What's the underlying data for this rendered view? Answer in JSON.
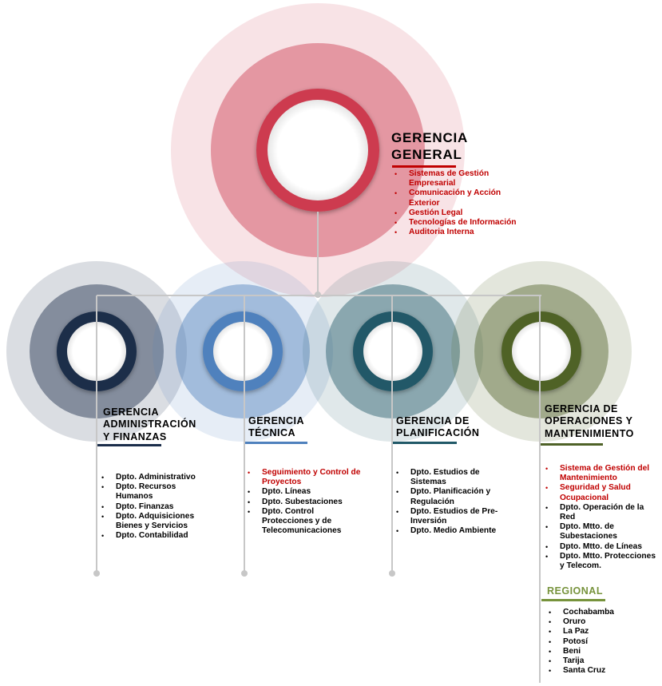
{
  "colors": {
    "general": "#cd3a4f",
    "admin": "#1b2d4a",
    "tecnica": "#4f81bd",
    "planificacion": "#215968",
    "operaciones": "#4f6228",
    "regional": "#77933c",
    "red_text": "#c00000",
    "connector": "#c7c7c7"
  },
  "general": {
    "title_line1": "GERENCIA",
    "title_line2": "GENERAL",
    "items": [
      {
        "text": "Sistemas de Gestión Empresarial",
        "color": "red"
      },
      {
        "text": "Comunicación y Acción Exterior",
        "color": "red"
      },
      {
        "text": "Gestión Legal",
        "color": "red"
      },
      {
        "text": "Tecnologías de Información",
        "color": "red"
      },
      {
        "text": "Auditoria Interna",
        "color": "red"
      }
    ]
  },
  "admin": {
    "title_line1": "GERENCIA",
    "title_line2": "ADMINISTRACIÓN",
    "title_line3": "Y FINANZAS",
    "items": [
      {
        "text": "Dpto. Administrativo",
        "color": "black"
      },
      {
        "text": "Dpto. Recursos Humanos",
        "color": "black"
      },
      {
        "text": "Dpto. Finanzas",
        "color": "black"
      },
      {
        "text": "Dpto. Adquisiciones Bienes y  Servicios",
        "color": "black"
      },
      {
        "text": "Dpto. Contabilidad",
        "color": "black"
      }
    ]
  },
  "tecnica": {
    "title_line1": "GERENCIA",
    "title_line2": "TÉCNICA",
    "items": [
      {
        "text": "Seguimiento y Control de Proyectos",
        "color": "red"
      },
      {
        "text": "Dpto. Líneas",
        "color": "black"
      },
      {
        "text": "Dpto. Subestaciones",
        "color": "black"
      },
      {
        "text": "Dpto. Control Protecciones y de Telecomunicaciones",
        "color": "black"
      }
    ]
  },
  "planificacion": {
    "title_line1": "GERENCIA DE",
    "title_line2": "PLANIFICACIÓN",
    "items": [
      {
        "text": "Dpto. Estudios de Sistemas",
        "color": "black"
      },
      {
        "text": "Dpto. Planificación y Regulación",
        "color": "black"
      },
      {
        "text": "Dpto. Estudios de Pre-Inversión",
        "color": "black"
      },
      {
        "text": "Dpto. Medio Ambiente",
        "color": "black"
      }
    ]
  },
  "operaciones": {
    "title_line1": "GERENCIA DE",
    "title_line2": "OPERACIONES Y",
    "title_line3": "MANTENIMIENTO",
    "items": [
      {
        "text": "Sistema de Gestión del Mantenimiento",
        "color": "red"
      },
      {
        "text": "Seguridad y Salud Ocupacional",
        "color": "red"
      },
      {
        "text": "Dpto. Operación de la Red",
        "color": "black"
      },
      {
        "text": "Dpto. Mtto. de Subestaciones",
        "color": "black"
      },
      {
        "text": "Dpto. Mtto. de Líneas",
        "color": "black"
      },
      {
        "text": "Dpto. Mtto. Protecciones y Telecom.",
        "color": "black"
      }
    ]
  },
  "regional": {
    "title": "REGIONAL",
    "items": [
      {
        "text": "Cochabamba",
        "color": "black"
      },
      {
        "text": "Oruro",
        "color": "black"
      },
      {
        "text": "La Paz",
        "color": "black"
      },
      {
        "text": "Potosí",
        "color": "black"
      },
      {
        "text": "Beni",
        "color": "black"
      },
      {
        "text": "Tarija",
        "color": "black"
      },
      {
        "text": "Santa Cruz",
        "color": "black"
      }
    ]
  }
}
